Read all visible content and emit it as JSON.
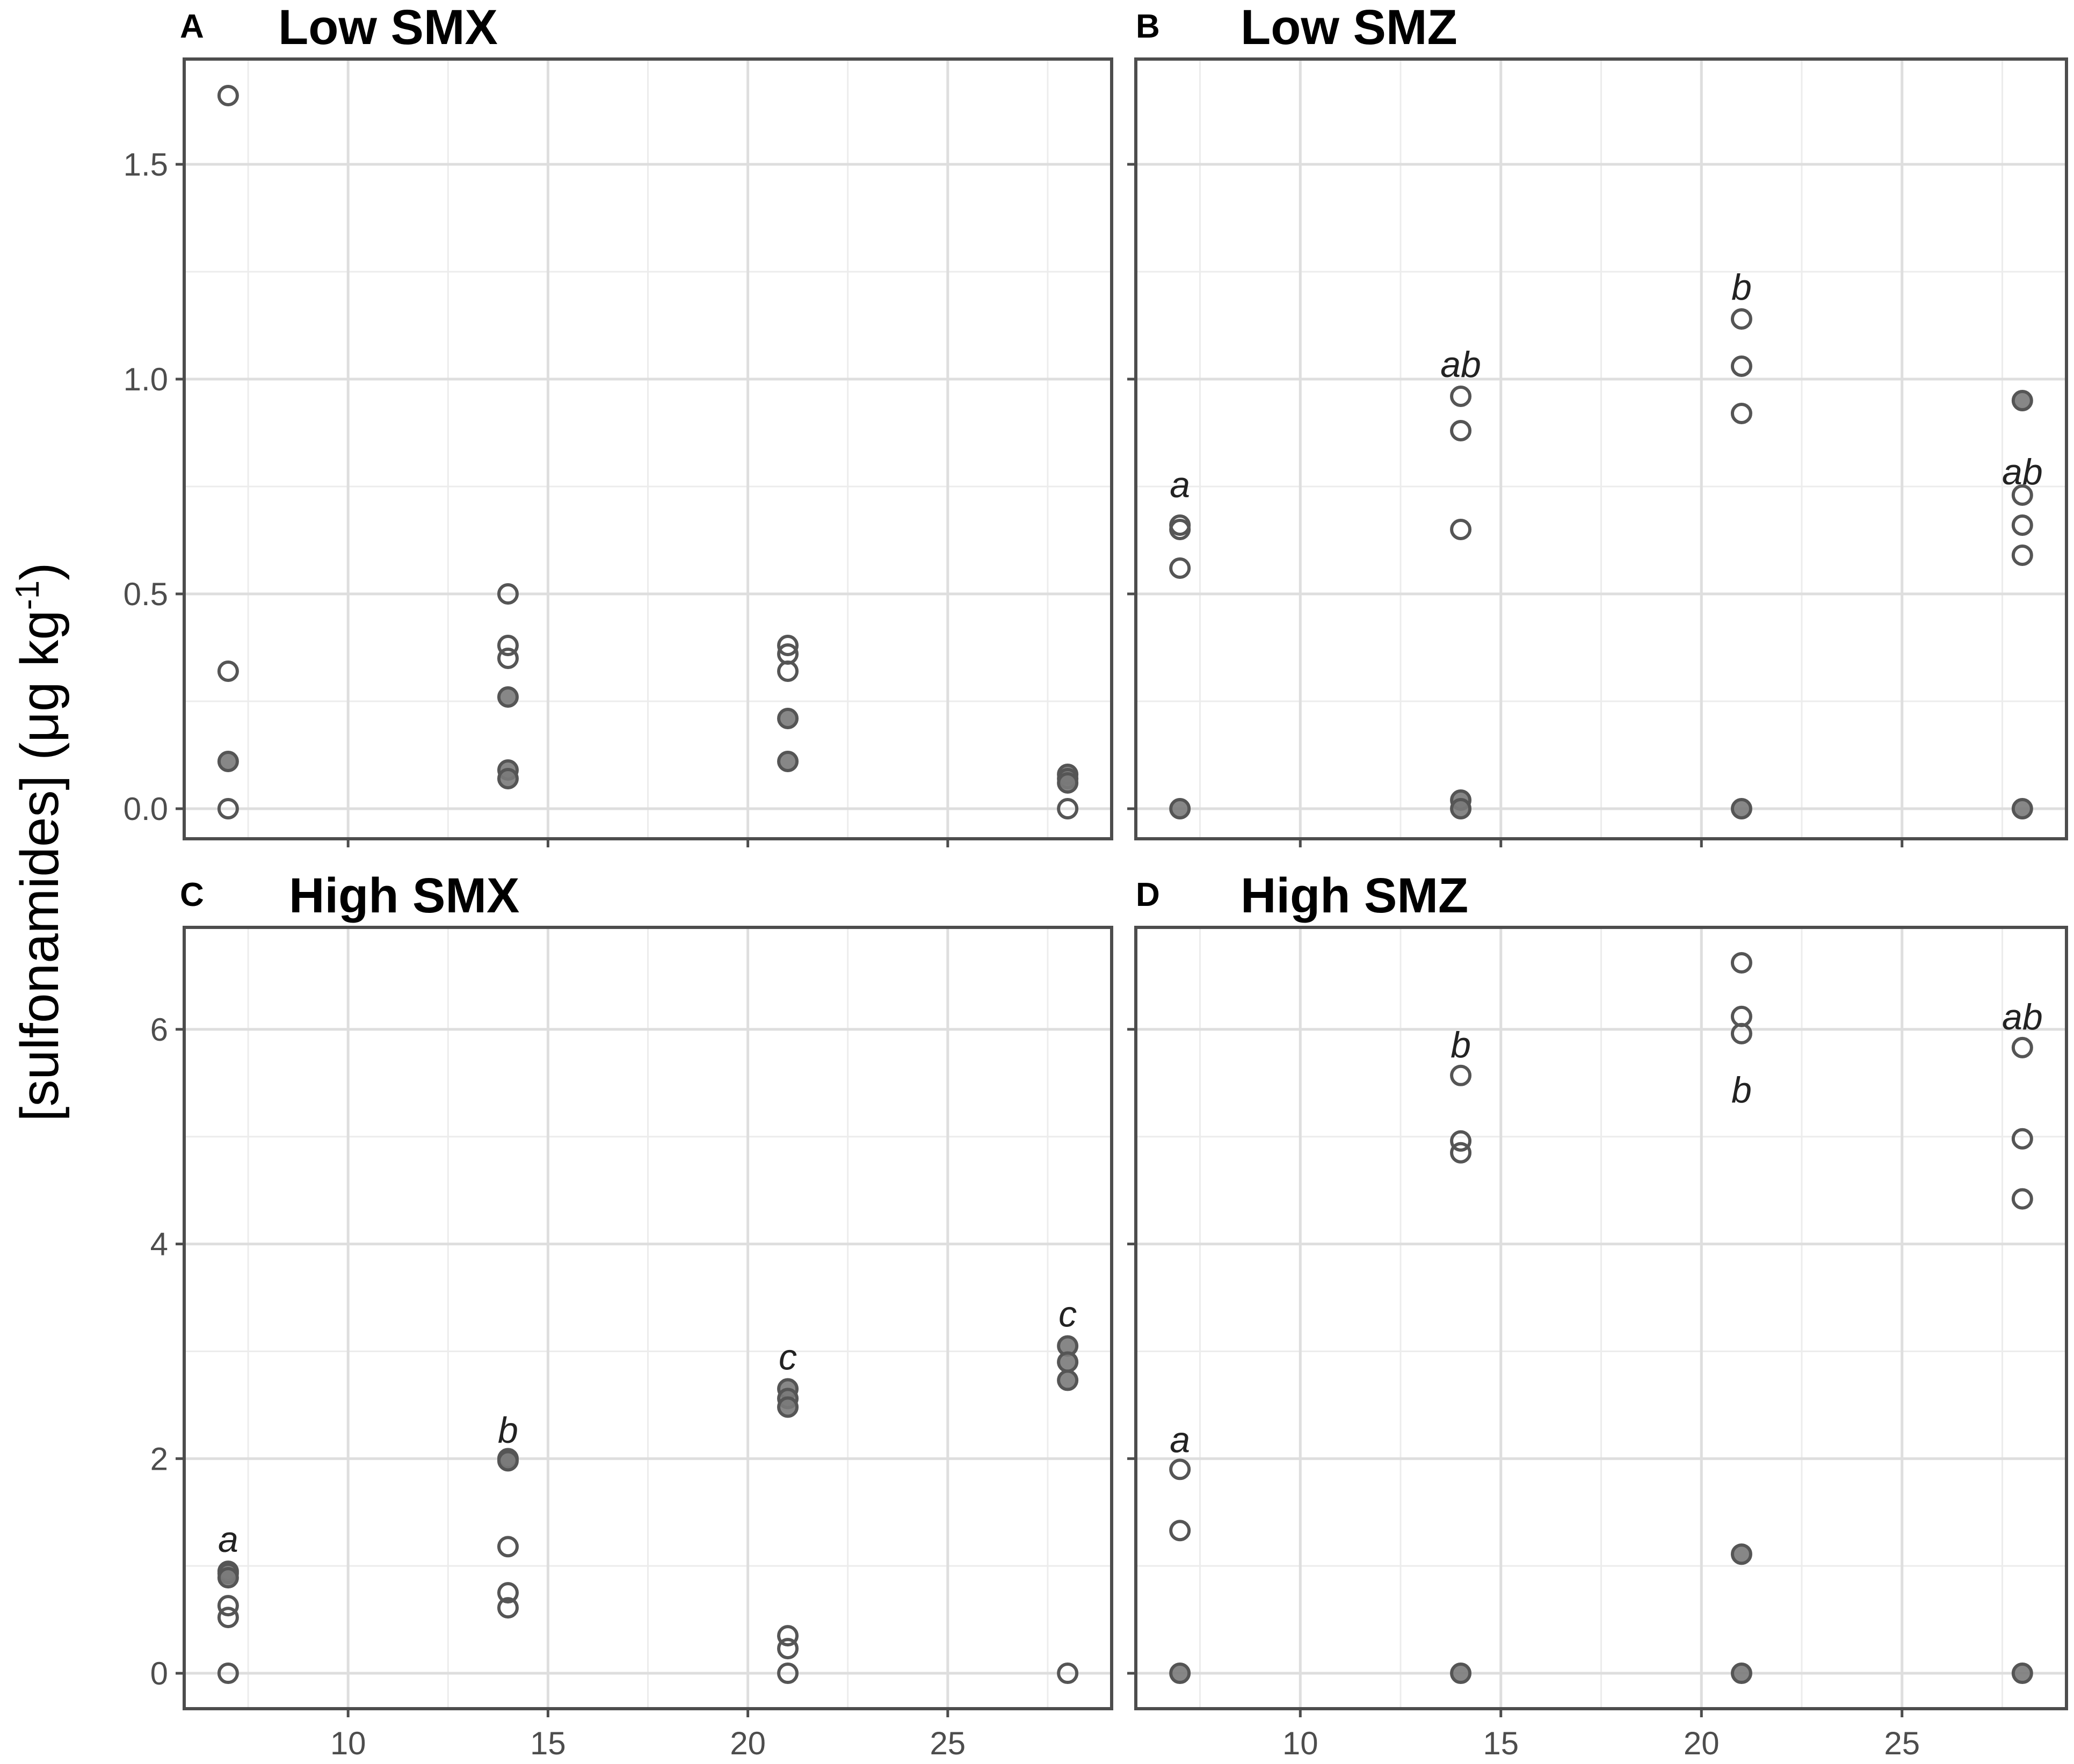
{
  "ylabel_main": "[sulfonamides] (μg kg",
  "ylabel_sup": "-1",
  "ylabel_end": ")",
  "colors": {
    "open_marker_stroke": "#555555",
    "filled_marker": "#7a7a7a",
    "grid": "#dedede",
    "panel_border": "#4d4d4d"
  },
  "chart_data": [
    {
      "id": "A",
      "letter": "A",
      "title": "Low SMX",
      "type": "scatter",
      "xlim": [
        5.9,
        29.1
      ],
      "xticks": [
        10,
        15,
        20,
        25
      ],
      "show_xticklabels": false,
      "ylim": [
        -0.07,
        1.745
      ],
      "yticks": [
        0.0,
        0.5,
        1.0,
        1.5
      ],
      "ytick_labels": [
        "0.0",
        "0.5",
        "1.0",
        "1.5"
      ],
      "show_yticklabels": true,
      "grid": true,
      "series": [
        {
          "marker": "open",
          "points": [
            [
              7,
              1.66
            ],
            [
              7,
              0.32
            ],
            [
              7,
              0.0
            ],
            [
              14,
              0.5
            ],
            [
              14,
              0.38
            ],
            [
              14,
              0.35
            ],
            [
              21,
              0.38
            ],
            [
              21,
              0.36
            ],
            [
              21,
              0.32
            ],
            [
              28,
              0.0
            ]
          ]
        },
        {
          "marker": "filled",
          "points": [
            [
              7,
              0.11
            ],
            [
              14,
              0.26
            ],
            [
              14,
              0.09
            ],
            [
              14,
              0.07
            ],
            [
              21,
              0.21
            ],
            [
              21,
              0.11
            ],
            [
              28,
              0.08
            ],
            [
              28,
              0.07
            ],
            [
              28,
              0.06
            ]
          ]
        }
      ],
      "labels": []
    },
    {
      "id": "B",
      "letter": "B",
      "title": "Low SMZ",
      "type": "scatter",
      "xlim": [
        5.9,
        29.1
      ],
      "xticks": [
        10,
        15,
        20,
        25
      ],
      "show_xticklabels": false,
      "ylim": [
        -0.07,
        1.745
      ],
      "yticks": [
        0.0,
        0.5,
        1.0,
        1.5
      ],
      "ytick_labels": [
        "0.0",
        "0.5",
        "1.0",
        "1.5"
      ],
      "show_yticklabels": false,
      "grid": true,
      "series": [
        {
          "marker": "open",
          "points": [
            [
              7,
              0.66
            ],
            [
              7,
              0.65
            ],
            [
              7,
              0.56
            ],
            [
              14,
              0.96
            ],
            [
              14,
              0.88
            ],
            [
              14,
              0.65
            ],
            [
              21,
              1.14
            ],
            [
              21,
              1.03
            ],
            [
              21,
              0.92
            ],
            [
              28,
              0.73
            ],
            [
              28,
              0.66
            ],
            [
              28,
              0.59
            ]
          ]
        },
        {
          "marker": "filled",
          "points": [
            [
              7,
              0.0
            ],
            [
              14,
              0.02
            ],
            [
              14,
              0.0
            ],
            [
              21,
              0.0
            ],
            [
              28,
              0.95
            ],
            [
              28,
              0.0
            ]
          ]
        }
      ],
      "labels": [
        {
          "text": "a",
          "x": 7,
          "y": 0.755
        },
        {
          "text": "ab",
          "x": 14,
          "y": 1.035
        },
        {
          "text": "b",
          "x": 21,
          "y": 1.215
        },
        {
          "text": "ab",
          "x": 28,
          "y": 0.785
        }
      ]
    },
    {
      "id": "C",
      "letter": "C",
      "title": "High SMX",
      "type": "scatter",
      "xlim": [
        5.9,
        29.1
      ],
      "xticks": [
        10,
        15,
        20,
        25
      ],
      "show_xticklabels": true,
      "ylim": [
        -0.33,
        6.95
      ],
      "yticks": [
        0,
        2,
        4,
        6
      ],
      "ytick_labels": [
        "0",
        "2",
        "4",
        "6"
      ],
      "show_yticklabels": true,
      "grid": true,
      "series": [
        {
          "marker": "open",
          "points": [
            [
              7,
              0.95
            ],
            [
              7,
              0.63
            ],
            [
              7,
              0.52
            ],
            [
              7,
              0.0
            ],
            [
              14,
              1.18
            ],
            [
              14,
              0.75
            ],
            [
              14,
              0.61
            ],
            [
              21,
              0.35
            ],
            [
              21,
              0.23
            ],
            [
              21,
              0.0
            ],
            [
              28,
              0.0
            ]
          ]
        },
        {
          "marker": "filled",
          "points": [
            [
              7,
              0.93
            ],
            [
              7,
              0.89
            ],
            [
              14,
              2.0
            ],
            [
              14,
              1.98
            ],
            [
              21,
              2.65
            ],
            [
              21,
              2.56
            ],
            [
              21,
              2.48
            ],
            [
              28,
              3.05
            ],
            [
              28,
              2.9
            ],
            [
              28,
              2.73
            ]
          ]
        }
      ],
      "labels": [
        {
          "text": "a",
          "x": 7,
          "y": 1.25
        },
        {
          "text": "b",
          "x": 14,
          "y": 2.27
        },
        {
          "text": "c",
          "x": 21,
          "y": 2.95
        },
        {
          "text": "c",
          "x": 28,
          "y": 3.35
        }
      ]
    },
    {
      "id": "D",
      "letter": "D",
      "title": "High SMZ",
      "type": "scatter",
      "xlim": [
        5.9,
        29.1
      ],
      "xticks": [
        10,
        15,
        20,
        25
      ],
      "show_xticklabels": true,
      "ylim": [
        -0.33,
        6.95
      ],
      "yticks": [
        0,
        2,
        4,
        6
      ],
      "ytick_labels": [
        "0",
        "2",
        "4",
        "6"
      ],
      "show_yticklabels": false,
      "grid": true,
      "series": [
        {
          "marker": "open",
          "points": [
            [
              7,
              1.9
            ],
            [
              7,
              1.33
            ],
            [
              14,
              5.57
            ],
            [
              14,
              4.96
            ],
            [
              14,
              4.85
            ],
            [
              21,
              6.62
            ],
            [
              21,
              6.12
            ],
            [
              21,
              5.96
            ],
            [
              28,
              5.83
            ],
            [
              28,
              4.98
            ],
            [
              28,
              4.42
            ]
          ]
        },
        {
          "marker": "filled",
          "points": [
            [
              7,
              0.0
            ],
            [
              14,
              0.0
            ],
            [
              21,
              1.11
            ],
            [
              21,
              0.0
            ],
            [
              28,
              0.0
            ]
          ]
        }
      ],
      "labels": [
        {
          "text": "a",
          "x": 7,
          "y": 2.18
        },
        {
          "text": "b",
          "x": 14,
          "y": 5.86
        },
        {
          "text": "b",
          "x": 21,
          "y": 5.44
        },
        {
          "text": "ab",
          "x": 28,
          "y": 6.12
        }
      ]
    }
  ]
}
